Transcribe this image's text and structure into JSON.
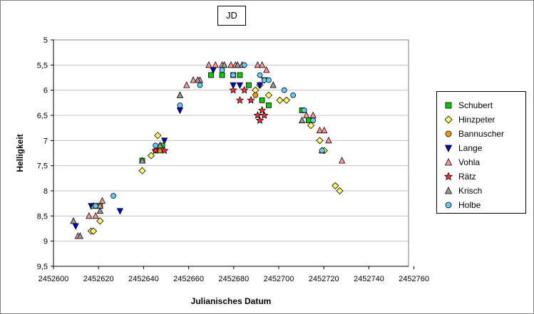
{
  "chart_data": {
    "type": "scatter",
    "title": "JD",
    "xlabel": "Julianisches Datum",
    "ylabel": "Helligkeit",
    "xlim": [
      2452600,
      2452760
    ],
    "ylim": [
      5,
      9.5
    ],
    "y_inverted": true,
    "x_ticks": [
      "2452600",
      "2452620",
      "2452640",
      "2452660",
      "2452680",
      "2452700",
      "2452720",
      "2452740",
      "2452760"
    ],
    "y_ticks": [
      "5",
      "5,5",
      "6",
      "6,5",
      "7",
      "7,5",
      "8",
      "8,5",
      "9",
      "9,5"
    ],
    "grid": "horizontal",
    "legend_position": "right",
    "series": [
      {
        "name": "Schubert",
        "marker": "square",
        "color": "#00cc00",
        "points": [
          [
            2452620,
            8.3
          ],
          [
            2452621,
            8.3
          ],
          [
            2452640,
            7.4
          ],
          [
            2452649,
            7.1
          ],
          [
            2452671,
            5.7
          ],
          [
            2452676,
            5.7
          ],
          [
            2452681,
            5.7
          ],
          [
            2452684,
            5.7
          ],
          [
            2452688,
            5.9
          ],
          [
            2452694,
            6.2
          ],
          [
            2452697,
            6.3
          ],
          [
            2452712,
            6.4
          ],
          [
            2452715,
            6.6
          ]
        ]
      },
      {
        "name": "Hinzpeter",
        "marker": "diamond",
        "color": "#ffff66",
        "points": [
          [
            2452617,
            8.8
          ],
          [
            2452618,
            8.8
          ],
          [
            2452621,
            8.6
          ],
          [
            2452640,
            7.6
          ],
          [
            2452644,
            7.3
          ],
          [
            2452647,
            6.9
          ],
          [
            2452691,
            6.0
          ],
          [
            2452693,
            5.9
          ],
          [
            2452697,
            6.1
          ],
          [
            2452702,
            6.2
          ],
          [
            2452705,
            6.2
          ],
          [
            2452716,
            6.7
          ],
          [
            2452720,
            7.0
          ],
          [
            2452722,
            7.2
          ],
          [
            2452727,
            7.9
          ],
          [
            2452729,
            8.0
          ]
        ]
      },
      {
        "name": "Bannuscher",
        "marker": "circle",
        "color": "#ff9900",
        "points": [
          [
            2452646,
            7.2
          ],
          [
            2452648,
            7.2
          ],
          [
            2452691,
            6.1
          ]
        ]
      },
      {
        "name": "Lange",
        "marker": "triangle-down",
        "color": "#0000cc",
        "points": [
          [
            2452610,
            8.7
          ],
          [
            2452617,
            8.3
          ],
          [
            2452630,
            8.4
          ],
          [
            2452650,
            7.0
          ],
          [
            2452657,
            6.4
          ],
          [
            2452672,
            5.6
          ],
          [
            2452681,
            5.9
          ],
          [
            2452684,
            5.9
          ],
          [
            2452693,
            5.9
          ],
          [
            2452695,
            5.8
          ]
        ]
      },
      {
        "name": "Vohla",
        "marker": "triangle-up",
        "color": "#ff9999",
        "points": [
          [
            2452611,
            8.9
          ],
          [
            2452616,
            8.5
          ],
          [
            2452619,
            8.5
          ],
          [
            2452621,
            8.3
          ],
          [
            2452622,
            8.2
          ],
          [
            2452648,
            7.1
          ],
          [
            2452657,
            6.1
          ],
          [
            2452660,
            5.9
          ],
          [
            2452663,
            5.8
          ],
          [
            2452666,
            5.8
          ],
          [
            2452670,
            5.5
          ],
          [
            2452673,
            5.5
          ],
          [
            2452676,
            5.5
          ],
          [
            2452680,
            5.5
          ],
          [
            2452682,
            5.5
          ],
          [
            2452685,
            5.5
          ],
          [
            2452692,
            5.5
          ],
          [
            2452694,
            5.5
          ],
          [
            2452696,
            5.6
          ],
          [
            2452714,
            6.5
          ],
          [
            2452717,
            6.5
          ],
          [
            2452720,
            6.8
          ],
          [
            2452722,
            6.8
          ],
          [
            2452724,
            7.0
          ],
          [
            2452730,
            7.4
          ]
        ]
      },
      {
        "name": "Rätz",
        "marker": "star",
        "color": "#ff3333",
        "points": [
          [
            2452646,
            7.2
          ],
          [
            2452650,
            7.2
          ],
          [
            2452681,
            6.0
          ],
          [
            2452684,
            6.2
          ],
          [
            2452686,
            6.0
          ],
          [
            2452689,
            6.2
          ],
          [
            2452692,
            6.5
          ],
          [
            2452693,
            6.6
          ],
          [
            2452695,
            6.5
          ],
          [
            2452694,
            6.4
          ]
        ]
      },
      {
        "name": "Krisch",
        "marker": "triangle-up",
        "color": "#999999",
        "points": [
          [
            2452609,
            8.6
          ],
          [
            2452612,
            8.9
          ],
          [
            2452618,
            8.3
          ],
          [
            2452621,
            8.4
          ],
          [
            2452640,
            7.4
          ],
          [
            2452648,
            7.1
          ],
          [
            2452657,
            6.1
          ],
          [
            2452665,
            5.8
          ],
          [
            2452677,
            5.5
          ],
          [
            2452683,
            5.5
          ],
          [
            2452699,
            5.9
          ],
          [
            2452712,
            6.6
          ],
          [
            2452721,
            7.2
          ]
        ]
      },
      {
        "name": "Holbe",
        "marker": "circle",
        "color": "#66ccff",
        "points": [
          [
            2452619,
            8.3
          ],
          [
            2452627,
            8.1
          ],
          [
            2452646,
            7.1
          ],
          [
            2452657,
            6.3
          ],
          [
            2452666,
            5.9
          ],
          [
            2452676,
            5.6
          ],
          [
            2452681,
            5.7
          ],
          [
            2452686,
            5.5
          ],
          [
            2452693,
            5.7
          ],
          [
            2452695,
            5.8
          ],
          [
            2452697,
            5.8
          ],
          [
            2452704,
            6.0
          ],
          [
            2452708,
            6.1
          ],
          [
            2452713,
            6.4
          ],
          [
            2452717,
            6.6
          ],
          [
            2452721,
            7.2
          ]
        ]
      }
    ]
  }
}
